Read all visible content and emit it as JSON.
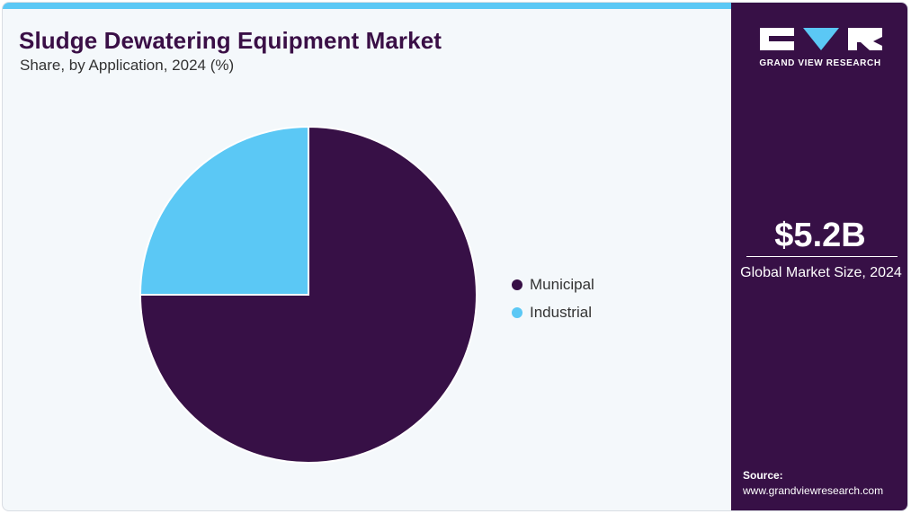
{
  "header": {
    "title": "Sludge Dewatering Equipment Market",
    "subtitle": "Share, by Application, 2024 (%)"
  },
  "chart_data": {
    "type": "pie",
    "categories": [
      "Municipal",
      "Industrial"
    ],
    "values": [
      75,
      25
    ],
    "colors": [
      "#371046",
      "#5bc8f5"
    ],
    "legend_position": "right"
  },
  "sidebar": {
    "brand": "GRAND VIEW RESEARCH",
    "market_value": "$5.2B",
    "market_caption": "Global Market Size, 2024",
    "source_label": "Source:",
    "source_url": "www.grandviewresearch.com"
  }
}
